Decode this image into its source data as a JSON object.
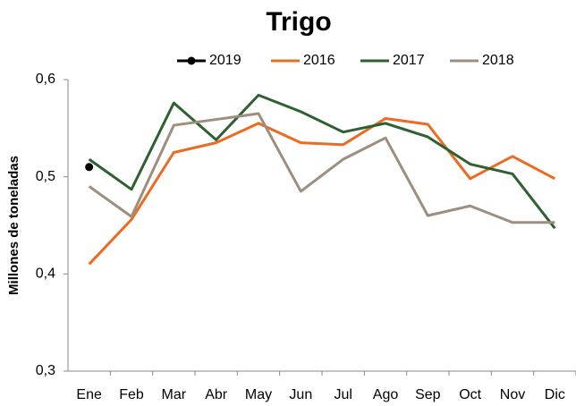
{
  "chart_data": {
    "type": "line",
    "title": "Trigo",
    "y_label": "Millones de toneladas",
    "categories": [
      "Ene",
      "Feb",
      "Mar",
      "Abr",
      "May",
      "Jun",
      "Jul",
      "Ago",
      "Sep",
      "Oct",
      "Nov",
      "Dic"
    ],
    "series": [
      {
        "name": "2019",
        "color": "#000000",
        "marker": true,
        "values": [
          0.51,
          null,
          null,
          null,
          null,
          null,
          null,
          null,
          null,
          null,
          null,
          null
        ]
      },
      {
        "name": "2016",
        "color": "#ed6b21",
        "values": [
          0.41,
          0.456,
          0.525,
          0.535,
          0.555,
          0.535,
          0.533,
          0.56,
          0.554,
          0.498,
          0.521,
          0.498
        ]
      },
      {
        "name": "2017",
        "color": "#2e6130",
        "values": [
          0.518,
          0.487,
          0.576,
          0.538,
          0.584,
          0.567,
          0.546,
          0.555,
          0.541,
          0.513,
          0.503,
          0.447
        ]
      },
      {
        "name": "2018",
        "color": "#9e8e7e",
        "values": [
          0.49,
          0.459,
          0.553,
          0.559,
          0.565,
          0.485,
          0.518,
          0.54,
          0.46,
          0.47,
          0.453,
          0.453
        ]
      }
    ],
    "ylim": [
      0.3,
      0.6
    ],
    "yticks": [
      {
        "value": 0.3,
        "label": "0,3"
      },
      {
        "value": 0.4,
        "label": "0,4"
      },
      {
        "value": 0.5,
        "label": "0,5"
      },
      {
        "value": 0.6,
        "label": "0,6"
      }
    ],
    "grid": false,
    "legend": "top"
  }
}
